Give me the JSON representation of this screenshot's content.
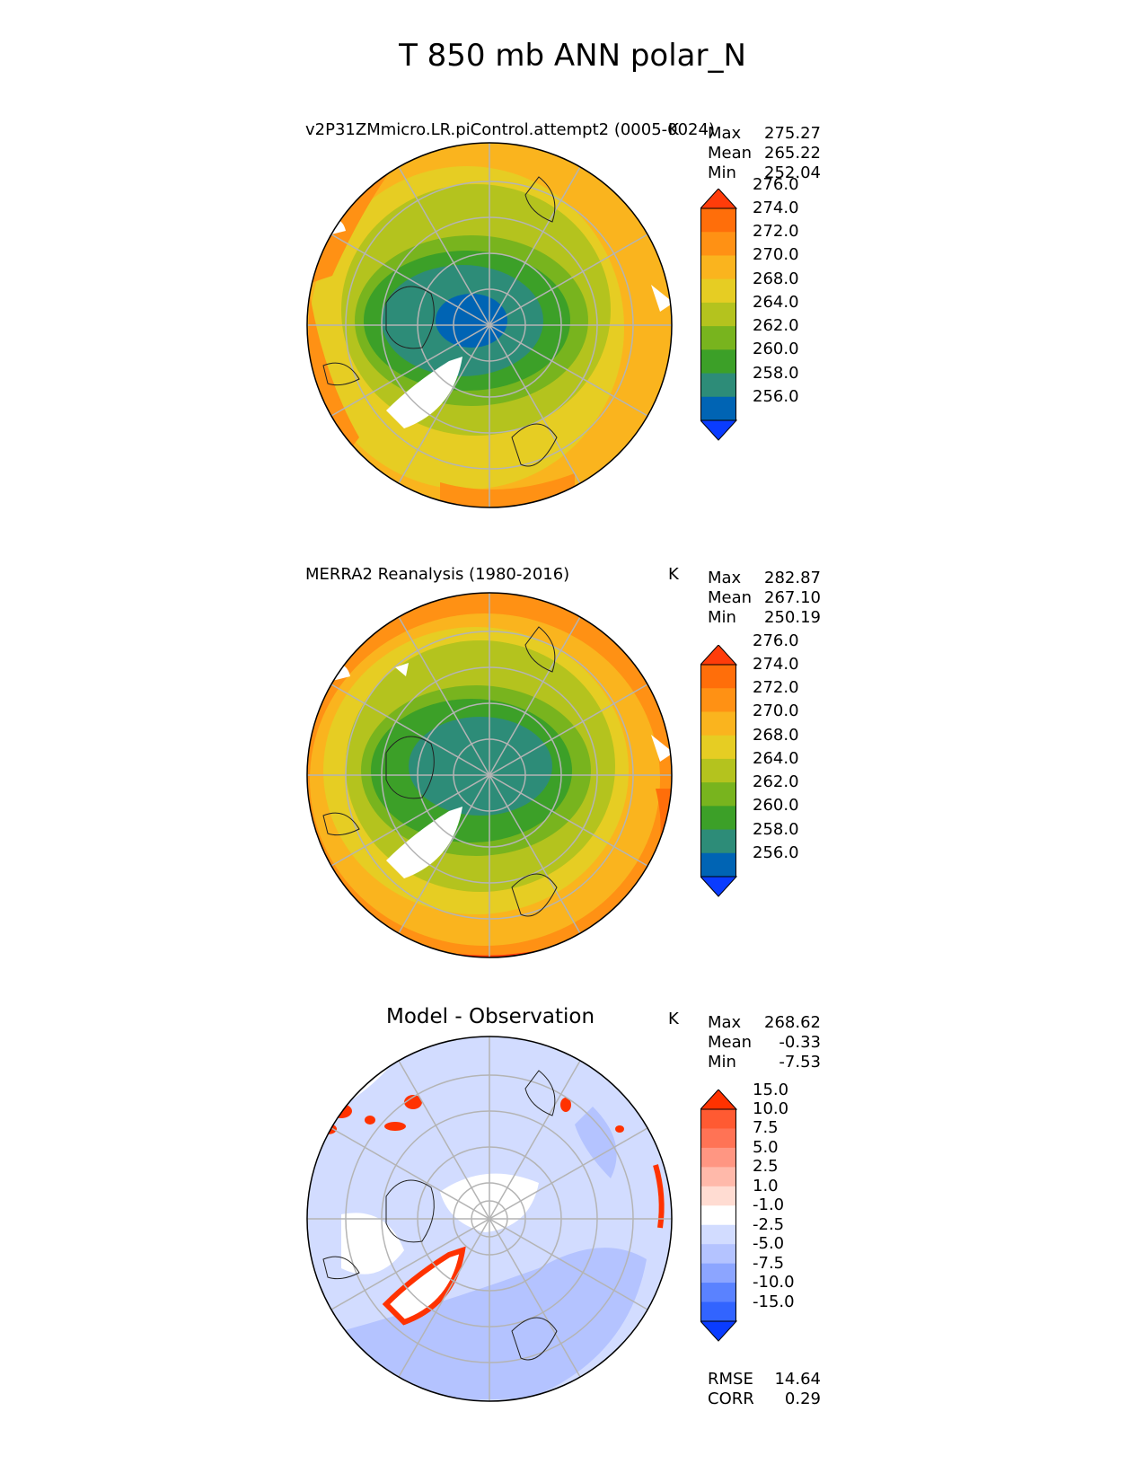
{
  "suptitle": "T 850 mb ANN polar_N",
  "panels": [
    {
      "title": "v2P31ZMmicro.LR.piControl.attempt2 (0005-0024)",
      "units": "K",
      "stats": {
        "max_label": "Max",
        "max": "275.27",
        "mean_label": "Mean",
        "mean": "265.22",
        "min_label": "Min",
        "min": "252.04"
      },
      "colorbar": {
        "ticks": [
          "256.0",
          "258.0",
          "260.0",
          "262.0",
          "264.0",
          "268.0",
          "270.0",
          "272.0",
          "274.0",
          "276.0"
        ],
        "colors": [
          "#0a3cff",
          "#0064b4",
          "#2d8c78",
          "#3ca028",
          "#78b41e",
          "#b4c31e",
          "#e6cd23",
          "#fab41e",
          "#ff9114",
          "#ff6e0a",
          "#ff3c0a"
        ],
        "extend": "both"
      }
    },
    {
      "title": "MERRA2 Reanalysis (1980-2016)",
      "units": "K",
      "stats": {
        "max_label": "Max",
        "max": "282.87",
        "mean_label": "Mean",
        "mean": "267.10",
        "min_label": "Min",
        "min": "250.19"
      },
      "colorbar": {
        "ticks": [
          "256.0",
          "258.0",
          "260.0",
          "262.0",
          "264.0",
          "268.0",
          "270.0",
          "272.0",
          "274.0",
          "276.0"
        ],
        "colors": [
          "#0a3cff",
          "#0064b4",
          "#2d8c78",
          "#3ca028",
          "#78b41e",
          "#b4c31e",
          "#e6cd23",
          "#fab41e",
          "#ff9114",
          "#ff6e0a",
          "#ff3c0a"
        ],
        "extend": "both"
      }
    },
    {
      "title": "Model - Observation",
      "units": "K",
      "stats": {
        "max_label": "Max",
        "max": "268.62",
        "mean_label": "Mean",
        "mean": "-0.33",
        "min_label": "Min",
        "min": "-7.53"
      },
      "colorbar": {
        "ticks": [
          "-15.0",
          "-10.0",
          "-7.5",
          "-5.0",
          "-2.5",
          "-1.0",
          "1.0",
          "2.5",
          "5.0",
          "7.5",
          "10.0",
          "15.0"
        ],
        "colors": [
          "#0a3cff",
          "#3264ff",
          "#5a82ff",
          "#8ca5ff",
          "#b4c3ff",
          "#d2dcff",
          "#ffffff",
          "#ffdcd2",
          "#ffb9aa",
          "#ff9682",
          "#ff7355",
          "#ff5a32",
          "#ff3200"
        ],
        "extend": "both"
      }
    }
  ],
  "bottom_stats": {
    "rmse_label": "RMSE",
    "rmse": "14.64",
    "corr_label": "CORR",
    "corr": "0.29"
  }
}
